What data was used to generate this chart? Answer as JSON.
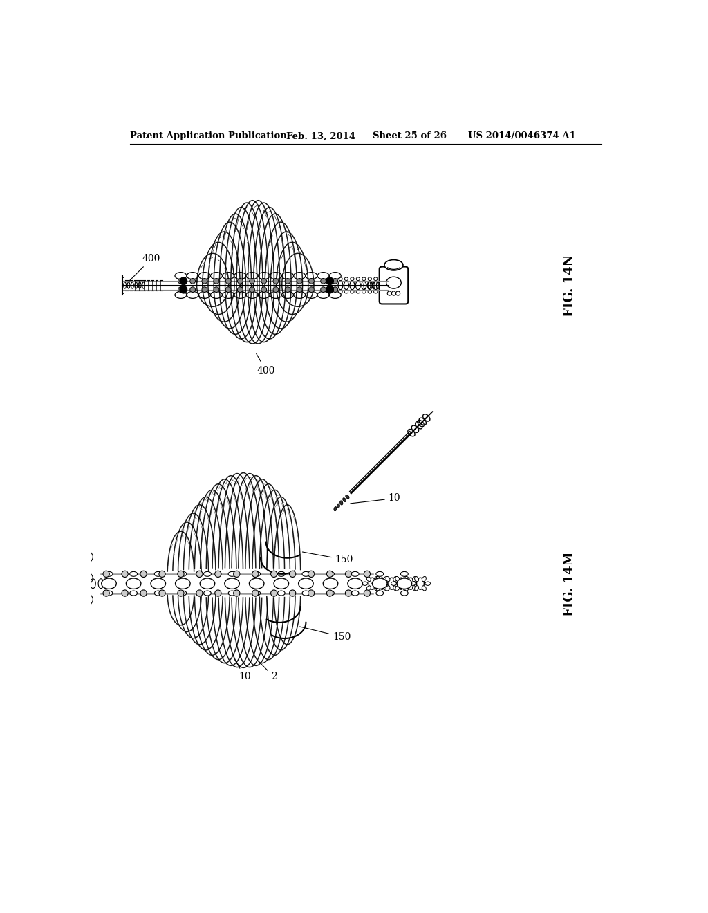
{
  "background_color": "#ffffff",
  "header_text": "Patent Application Publication",
  "header_date": "Feb. 13, 2014",
  "header_sheet": "Sheet 25 of 26",
  "header_patent": "US 2014/0046374 A1",
  "header_fontsize": 9.5,
  "fig_14n_label": "FIG. 14N",
  "fig_14m_label": "FIG. 14M",
  "label_400_left": "400",
  "label_400_bottom": "400",
  "label_10_top": "10",
  "label_10_bottom": "10",
  "label_150_top": "150",
  "label_150_bottom": "150",
  "label_2": "2",
  "text_color": "#000000",
  "line_color": "#000000"
}
